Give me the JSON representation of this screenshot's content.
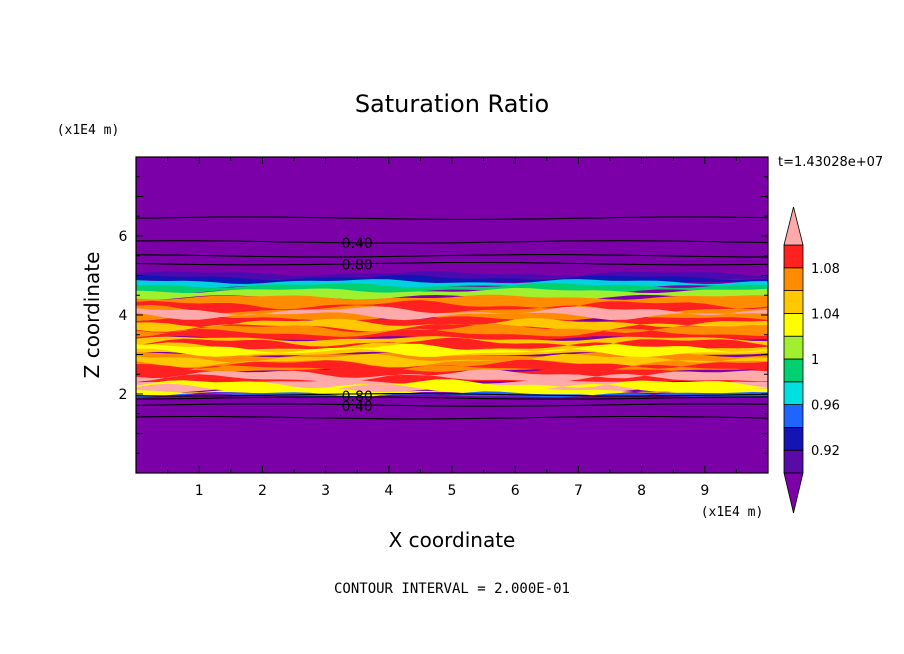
{
  "chart_data": {
    "type": "heatmap",
    "title": "Saturation Ratio",
    "xlabel": "X coordinate",
    "ylabel": "Z coordinate",
    "x_unit": "(x1E4 m)",
    "y_unit": "(x1E4 m)",
    "time_label": "t=1.43028e+07",
    "contour_interval_label": "CONTOUR INTERVAL = 2.000E-01",
    "xlim": [
      0,
      10
    ],
    "ylim": [
      0,
      8
    ],
    "x_ticks": [
      1,
      2,
      3,
      4,
      5,
      6,
      7,
      8,
      9
    ],
    "y_ticks": [
      2,
      4,
      6
    ],
    "colorbar": {
      "levels": [
        0.9,
        0.92,
        0.94,
        0.96,
        0.98,
        1.0,
        1.02,
        1.04,
        1.06,
        1.08,
        1.1
      ],
      "labels": [
        "0.92",
        "0.96",
        "1",
        "1.04",
        "1.08"
      ],
      "label_values": [
        0.92,
        0.96,
        1.0,
        1.04,
        1.08
      ],
      "colors": [
        "#5a0aa6",
        "#1414b4",
        "#1e64ff",
        "#00e0e0",
        "#00d070",
        "#a0f030",
        "#ffff00",
        "#ffc800",
        "#ff8c00",
        "#ff2020"
      ],
      "under_color": "#7b00a8",
      "over_color": "#ffaaaa"
    },
    "background_color": "#7b00a8",
    "bands": [
      {
        "z0": 4.92,
        "z1": 5.05,
        "color": "#4a0ab0",
        "value": 0.92
      },
      {
        "z0": 4.82,
        "z1": 4.95,
        "color": "#1414b4",
        "value": 0.93
      },
      {
        "z0": 4.72,
        "z1": 4.85,
        "color": "#00d0e0",
        "value": 0.97
      },
      {
        "z0": 4.6,
        "z1": 4.75,
        "color": "#00d070",
        "value": 0.99
      },
      {
        "z0": 4.45,
        "z1": 4.62,
        "color": "#a0f030",
        "value": 1.01
      },
      {
        "z0": 3.9,
        "z1": 4.45,
        "color": "#ff8c00",
        "value": 1.06
      },
      {
        "z0": 3.4,
        "z1": 3.9,
        "color": "#ff2020",
        "value": 1.08
      },
      {
        "z0": 3.0,
        "z1": 3.4,
        "color": "#ffc800",
        "value": 1.05
      },
      {
        "z0": 2.6,
        "z1": 3.0,
        "color": "#ff8c00",
        "value": 1.06
      },
      {
        "z0": 2.3,
        "z1": 2.6,
        "color": "#ff2020",
        "value": 1.08
      },
      {
        "z0": 2.1,
        "z1": 2.3,
        "color": "#ffaaaa",
        "value": 1.1
      },
      {
        "z0": 2.0,
        "z1": 2.1,
        "color": "#ffff00",
        "value": 1.03
      },
      {
        "z0": 1.96,
        "z1": 2.0,
        "color": "#1e64ff",
        "value": 0.96
      }
    ],
    "streaks": [
      {
        "z": 4.2,
        "color": "#ff2020"
      },
      {
        "z": 4.05,
        "color": "#ffaaaa"
      },
      {
        "z": 3.75,
        "color": "#ffc800"
      },
      {
        "z": 3.6,
        "color": "#ff8c00"
      },
      {
        "z": 3.25,
        "color": "#ff2020"
      },
      {
        "z": 3.1,
        "color": "#ffff00"
      },
      {
        "z": 2.85,
        "color": "#ffc800"
      },
      {
        "z": 2.7,
        "color": "#ff2020"
      },
      {
        "z": 2.45,
        "color": "#ffaaaa"
      },
      {
        "z": 2.2,
        "color": "#ffff00"
      }
    ],
    "contour_lines": [
      {
        "z": 6.45,
        "label": ""
      },
      {
        "z": 5.85,
        "label": "0.40"
      },
      {
        "z": 5.5,
        "label": ""
      },
      {
        "z": 5.3,
        "label": "0.80"
      },
      {
        "z": 1.98,
        "label": "0.80"
      },
      {
        "z": 1.9,
        "label": ""
      },
      {
        "z": 1.72,
        "label": "0.40"
      },
      {
        "z": 1.4,
        "label": ""
      }
    ],
    "contour_label_x": 3.5
  }
}
